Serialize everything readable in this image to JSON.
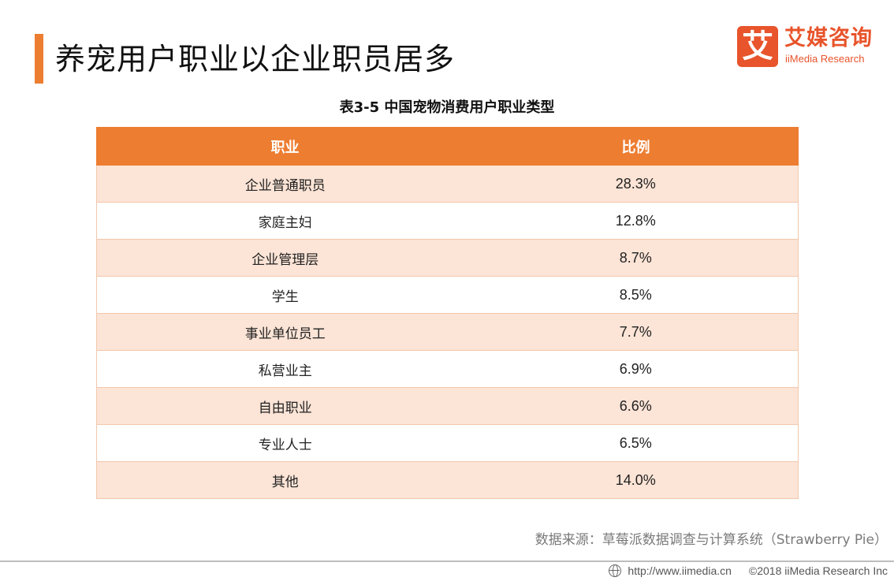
{
  "header": {
    "title": "养宠用户职业以企业职员居多"
  },
  "logo": {
    "mark": "艾",
    "name_cn": "艾媒咨询",
    "name_en": "iiMedia Research",
    "color": "#e8542b"
  },
  "table": {
    "caption": "表3-5 中国宠物消费用户职业类型",
    "header_color": "#ed7d31",
    "stripe_color": "#fce4d6",
    "columns": [
      "职业",
      "比例"
    ],
    "rows": [
      [
        "企业普通职员",
        "28.3%"
      ],
      [
        "家庭主妇",
        "12.8%"
      ],
      [
        "企业管理层",
        "8.7%"
      ],
      [
        "学生",
        "8.5%"
      ],
      [
        "事业单位员工",
        "7.7%"
      ],
      [
        "私营业主",
        "6.9%"
      ],
      [
        "自由职业",
        "6.6%"
      ],
      [
        "专业人士",
        "6.5%"
      ],
      [
        "其他",
        "14.0%"
      ]
    ]
  },
  "source": "数据来源：草莓派数据调查与计算系统（Strawberry Pie）",
  "footer": {
    "url": "http://www.iimedia.cn",
    "copyright": "©2018  iiMedia Research  Inc"
  }
}
